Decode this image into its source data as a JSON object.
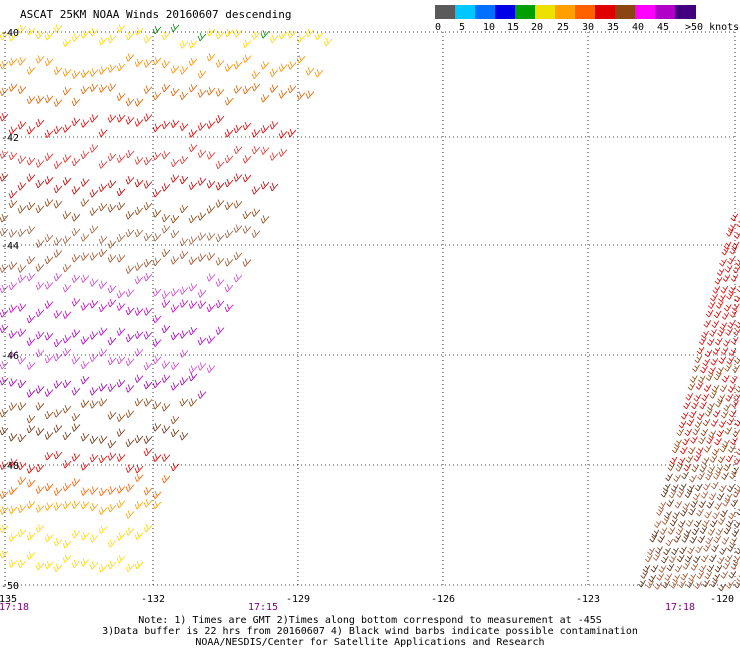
{
  "title": "ASCAT 25KM NOAA Winds 20160607 descending",
  "legend": {
    "unit": "knots",
    "labels": [
      "0",
      "5",
      "10",
      "15",
      "20",
      "25",
      "30",
      "35",
      "40",
      "45",
      ">50"
    ],
    "colors": [
      "#5a5a5a",
      "#00c8ff",
      "#0070ff",
      "#0000e6",
      "#00a000",
      "#f0e000",
      "#ffa000",
      "#ff6000",
      "#e00000",
      "#8b4513",
      "#ff00ff",
      "#b000c8",
      "#400080"
    ]
  },
  "axes": {
    "x_ticks": [
      "-135",
      "-132",
      "-129",
      "-126",
      "-123",
      "-120"
    ],
    "y_ticks": [
      "-40",
      "-42",
      "-44",
      "-46",
      "-48",
      "-50"
    ]
  },
  "times": [
    "17:18",
    "17:15",
    "17:18"
  ],
  "notes": [
    "Note: 1) Times are GMT 2)Times along bottom correspond to measurement at -45S",
    "3)Data buffer is 22 hrs from 20160607 4) Black wind barbs indicate possible contamination",
    "NOAA/NESDIS/Center for Satellite Applications and Research"
  ],
  "colors": {
    "grid": "#000000",
    "time_label": "#800080"
  }
}
